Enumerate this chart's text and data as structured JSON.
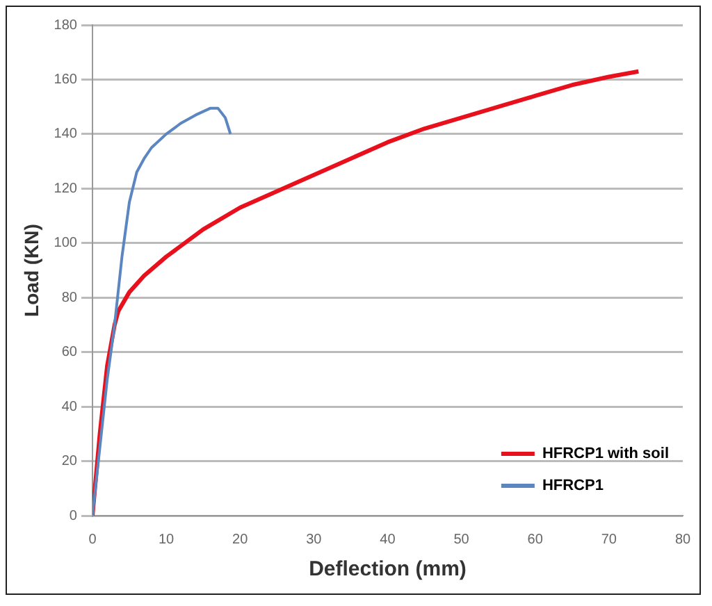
{
  "chart_data": {
    "type": "line",
    "xlabel": "Deflection (mm)",
    "ylabel": "Load (KN)",
    "xlim": [
      0,
      80
    ],
    "xticks": [
      0,
      10,
      20,
      30,
      40,
      50,
      60,
      70,
      80
    ],
    "ylim": [
      0,
      180
    ],
    "yticks": [
      0,
      20,
      40,
      60,
      80,
      100,
      120,
      140,
      160,
      180
    ],
    "grid": "y",
    "legend": "bottom right",
    "marker": "none",
    "line_style": "solid",
    "series": [
      {
        "name": "HFRCP1 with soil",
        "color": "#e8101c",
        "x": [
          0,
          0.5,
          1,
          2,
          3,
          3.5,
          5,
          7,
          10,
          15,
          20,
          25,
          30,
          35,
          40,
          45,
          50,
          55,
          60,
          65,
          70,
          74
        ],
        "values": [
          0,
          15,
          30,
          55,
          70,
          75,
          82,
          88,
          95,
          105,
          113,
          119,
          125,
          131,
          137,
          142,
          146,
          150,
          154,
          158,
          161,
          163
        ]
      },
      {
        "name": "HFRCP1",
        "color": "#5b86c0",
        "x": [
          0,
          1,
          2,
          3,
          4,
          5,
          6,
          7,
          8,
          10,
          12,
          14,
          16,
          17,
          18,
          18.7
        ],
        "values": [
          0,
          25,
          50,
          70,
          95,
          115,
          126,
          131,
          135,
          140,
          144,
          147,
          149.5,
          149.5,
          146,
          140
        ]
      }
    ]
  }
}
